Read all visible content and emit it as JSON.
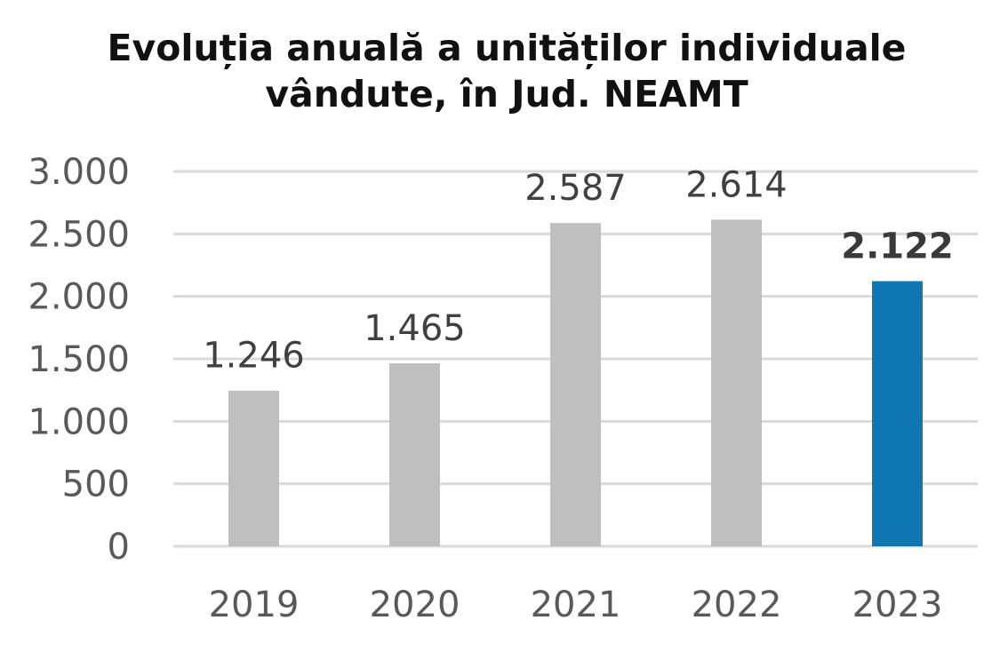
{
  "chart_data": {
    "type": "bar",
    "title_lines": [
      "Evoluția anuală a unităților individuale",
      "vândute, în Jud. NEAMT"
    ],
    "xlabel": "",
    "ylabel": "",
    "categories": [
      "2019",
      "2020",
      "2021",
      "2022",
      "2023"
    ],
    "values": [
      1246,
      1465,
      2587,
      2614,
      2122
    ],
    "value_labels": [
      "1.246",
      "1.465",
      "2.587",
      "2.614",
      "2.122"
    ],
    "ylim": [
      0,
      3000
    ],
    "yticks": [
      0,
      500,
      1000,
      1500,
      2000,
      2500,
      3000
    ],
    "ytick_labels": [
      "0",
      "500",
      "1.000",
      "1.500",
      "2.000",
      "2.500",
      "3.000"
    ],
    "grid": true,
    "legend": "none",
    "colors": {
      "default_bar": "#bfbfbf",
      "highlight_bar": "#0e77b4",
      "gridline": "#d9d9d9"
    },
    "highlight_index": 4
  }
}
